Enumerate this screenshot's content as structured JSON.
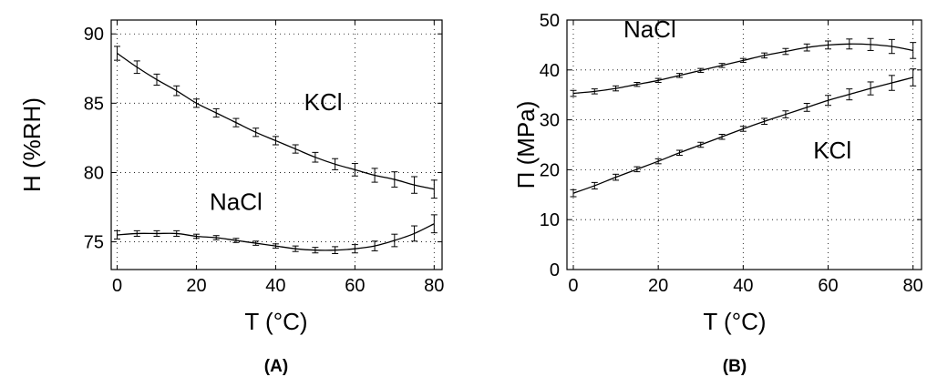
{
  "chart_data": [
    {
      "type": "line",
      "panel_label": "(A)",
      "xlabel": "T (°C)",
      "ylabel": "H (%RH)",
      "xlim": [
        -1.5,
        82
      ],
      "ylim": [
        73,
        91
      ],
      "xticks": [
        0,
        20,
        40,
        60,
        80
      ],
      "yticks": [
        75,
        80,
        85,
        90
      ],
      "grid": true,
      "x": [
        0,
        5,
        10,
        15,
        20,
        25,
        30,
        35,
        40,
        45,
        50,
        55,
        60,
        65,
        70,
        75,
        80
      ],
      "series": [
        {
          "name": "KCl",
          "values": [
            88.6,
            87.6,
            86.7,
            85.9,
            85.0,
            84.3,
            83.6,
            82.9,
            82.3,
            81.7,
            81.1,
            80.6,
            80.2,
            79.8,
            79.5,
            79.1,
            78.8
          ],
          "errors": [
            0.5,
            0.45,
            0.4,
            0.35,
            0.3,
            0.3,
            0.3,
            0.3,
            0.3,
            0.3,
            0.35,
            0.4,
            0.45,
            0.5,
            0.55,
            0.6,
            0.65
          ],
          "label_at": [
            52,
            84.5
          ]
        },
        {
          "name": "NaCl",
          "values": [
            75.5,
            75.6,
            75.6,
            75.6,
            75.4,
            75.3,
            75.1,
            74.9,
            74.7,
            74.5,
            74.4,
            74.4,
            74.5,
            74.7,
            75.1,
            75.6,
            76.3
          ],
          "errors": [
            0.3,
            0.2,
            0.2,
            0.2,
            0.15,
            0.15,
            0.15,
            0.15,
            0.15,
            0.2,
            0.2,
            0.25,
            0.3,
            0.35,
            0.45,
            0.55,
            0.65
          ],
          "label_at": [
            30,
            77.3
          ]
        }
      ]
    },
    {
      "type": "line",
      "panel_label": "(B)",
      "xlabel": "T (°C)",
      "ylabel": "Π (MPa)",
      "xlim": [
        -1.5,
        82
      ],
      "ylim": [
        0,
        50
      ],
      "xticks": [
        0,
        20,
        40,
        60,
        80
      ],
      "yticks": [
        0,
        10,
        20,
        30,
        40,
        50
      ],
      "grid": true,
      "x": [
        0,
        5,
        10,
        15,
        20,
        25,
        30,
        35,
        40,
        45,
        50,
        55,
        60,
        65,
        70,
        75,
        80
      ],
      "series": [
        {
          "name": "NaCl",
          "values": [
            35.3,
            35.7,
            36.3,
            37.1,
            37.9,
            38.9,
            39.9,
            40.9,
            41.9,
            42.9,
            43.7,
            44.5,
            45.0,
            45.2,
            45.1,
            44.7,
            43.9
          ],
          "errors": [
            0.6,
            0.5,
            0.5,
            0.4,
            0.4,
            0.4,
            0.4,
            0.4,
            0.4,
            0.5,
            0.6,
            0.7,
            0.8,
            1.0,
            1.2,
            1.4,
            1.6
          ],
          "label_at": [
            18,
            46.5
          ]
        },
        {
          "name": "KCl",
          "values": [
            15.3,
            16.8,
            18.5,
            20.1,
            21.7,
            23.4,
            25.0,
            26.6,
            28.2,
            29.7,
            31.1,
            32.5,
            33.9,
            35.1,
            36.3,
            37.4,
            38.5
          ],
          "errors": [
            0.7,
            0.65,
            0.6,
            0.5,
            0.5,
            0.5,
            0.5,
            0.5,
            0.5,
            0.6,
            0.7,
            0.8,
            1.0,
            1.1,
            1.3,
            1.5,
            1.7
          ],
          "label_at": [
            61,
            22.3
          ]
        }
      ]
    }
  ]
}
